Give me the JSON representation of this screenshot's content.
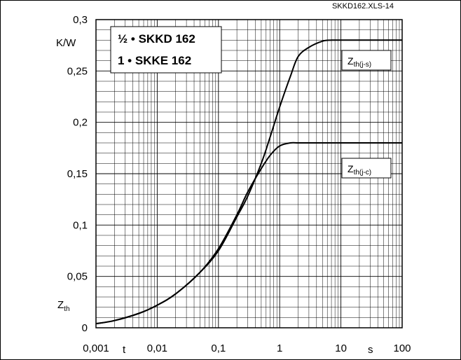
{
  "header": {
    "title": "SKKD162.XLS-14"
  },
  "chart_data": {
    "type": "line",
    "title": "SKKD162.XLS-14",
    "xscale": "log",
    "xlim": [
      0.001,
      100
    ],
    "ylim": [
      0,
      0.3
    ],
    "grid": true,
    "x_ticks": [
      "0,001",
      "0,01",
      "0,1",
      "1",
      "10",
      "100"
    ],
    "y_ticks": [
      "0",
      "0,05",
      "0,1",
      "0,15",
      "0,2",
      "0,25",
      "0,3"
    ],
    "xlabel": "t",
    "xunit": "s",
    "ylabel": "Z",
    "ylabel_sub": "th",
    "yunit": "K/W",
    "legend": {
      "placement": "top-left",
      "lines": [
        "½ • SKKD 162",
        "1 • SKKE 162"
      ]
    },
    "series": [
      {
        "name": "Z",
        "name_sub": "th(j-s)",
        "x": [
          0.001,
          0.002,
          0.005,
          0.01,
          0.02,
          0.05,
          0.1,
          0.2,
          0.3,
          0.5,
          0.7,
          1,
          1.5,
          2,
          3,
          5,
          7,
          10,
          100
        ],
        "y": [
          0.004,
          0.007,
          0.014,
          0.022,
          0.033,
          0.054,
          0.075,
          0.108,
          0.128,
          0.16,
          0.186,
          0.215,
          0.245,
          0.264,
          0.273,
          0.279,
          0.28,
          0.28,
          0.28
        ]
      },
      {
        "name": "Z",
        "name_sub": "th(j-c)",
        "x": [
          0.001,
          0.002,
          0.005,
          0.01,
          0.02,
          0.05,
          0.1,
          0.2,
          0.3,
          0.5,
          0.7,
          1,
          1.5,
          2,
          3,
          5,
          10,
          100
        ],
        "y": [
          0.004,
          0.007,
          0.014,
          0.022,
          0.033,
          0.054,
          0.077,
          0.11,
          0.132,
          0.155,
          0.168,
          0.177,
          0.18,
          0.18,
          0.18,
          0.18,
          0.18,
          0.18
        ]
      }
    ]
  }
}
